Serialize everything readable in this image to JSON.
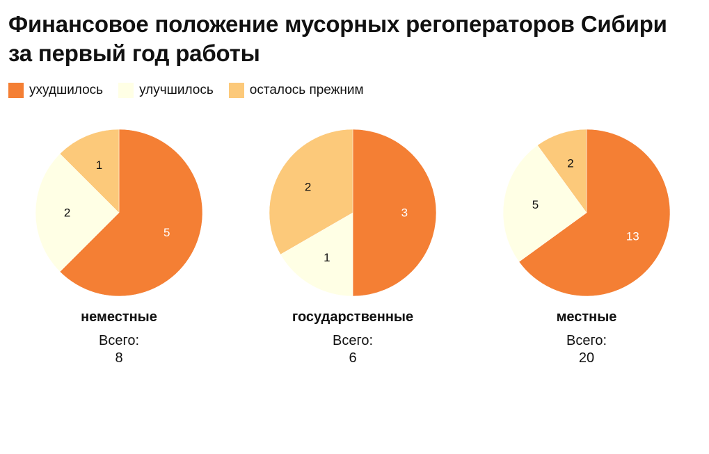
{
  "title": "Финансовое положение мусорных регоператоров Сибири за первый год работы",
  "legend": [
    {
      "label": "ухудшилось",
      "color": "#f47f34"
    },
    {
      "label": "улучшилось",
      "color": "#ffffe5"
    },
    {
      "label": "осталось прежним",
      "color": "#fcc97a"
    }
  ],
  "total_label": "Всего:",
  "chart_data": [
    {
      "type": "pie",
      "title": "неместные",
      "total": 8,
      "slices": [
        {
          "label": "ухудшилось",
          "value": 5
        },
        {
          "label": "улучшилось",
          "value": 2
        },
        {
          "label": "осталось прежним",
          "value": 1
        }
      ]
    },
    {
      "type": "pie",
      "title": "государственные",
      "total": 6,
      "slices": [
        {
          "label": "ухудшилось",
          "value": 3
        },
        {
          "label": "улучшилось",
          "value": 1
        },
        {
          "label": "осталось прежним",
          "value": 2
        }
      ]
    },
    {
      "type": "pie",
      "title": "местные",
      "total": 20,
      "slices": [
        {
          "label": "ухудшилось",
          "value": 13
        },
        {
          "label": "улучшилось",
          "value": 5
        },
        {
          "label": "осталось прежним",
          "value": 2
        }
      ]
    }
  ]
}
